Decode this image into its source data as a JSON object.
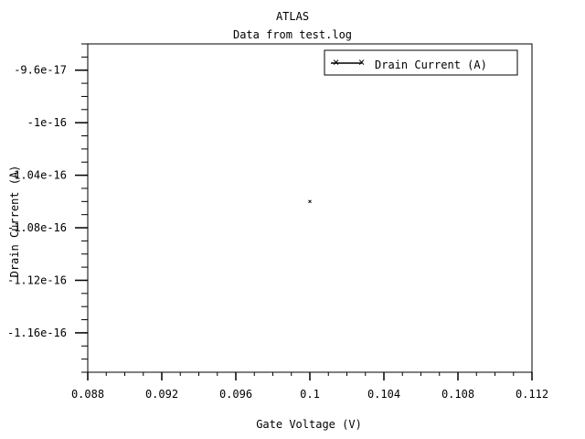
{
  "chart_data": {
    "type": "scatter",
    "title": "ATLAS",
    "subtitle": "Data from test.log",
    "xlabel": "Gate Voltage (V)",
    "ylabel": "Drain Current (A)",
    "xlim": [
      0.088,
      0.112
    ],
    "ylim": [
      -1.19e-16,
      -9.4e-17
    ],
    "x_ticks": [
      0.088,
      0.092,
      0.096,
      0.1,
      0.104,
      0.108,
      0.112
    ],
    "x_tick_labels": [
      "0.088",
      "0.092",
      "0.096",
      "0.1",
      "0.104",
      "0.108",
      "0.112"
    ],
    "y_ticks": [
      -9.6e-17,
      -1e-16,
      -1.04e-16,
      -1.08e-16,
      -1.12e-16,
      -1.16e-16
    ],
    "y_tick_labels": [
      "-9.6e-17",
      "-1e-16",
      "-1.04e-16",
      "-1.08e-16",
      "-1.12e-16",
      "-1.16e-16"
    ],
    "grid": false,
    "legend_position": "top-right",
    "series": [
      {
        "name": "Drain Current (A)",
        "x": [
          0.1
        ],
        "y": [
          -1.06e-16
        ],
        "color": "#000000",
        "marker": "x"
      }
    ]
  }
}
